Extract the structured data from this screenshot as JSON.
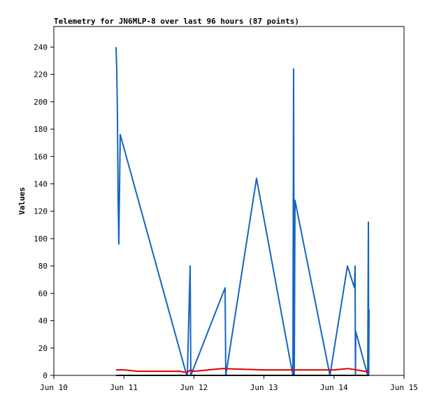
{
  "chart_data": {
    "type": "line",
    "title": "Telemetry for JN6MLP-8 over last 96 hours (87 points)",
    "ylabel": "Values",
    "xlim": [
      10,
      15
    ],
    "xticks": [
      {
        "value": 10,
        "label": "Jun 10"
      },
      {
        "value": 11,
        "label": "Jun 11"
      },
      {
        "value": 12,
        "label": "Jun 12"
      },
      {
        "value": 13,
        "label": "Jun 13"
      },
      {
        "value": 14,
        "label": "Jun 14"
      },
      {
        "value": 15,
        "label": "Jun 15"
      }
    ],
    "ylim": [
      0,
      255
    ],
    "yticks": [
      0,
      20,
      40,
      60,
      80,
      100,
      120,
      140,
      160,
      180,
      200,
      220,
      240
    ],
    "grid": false,
    "series": [
      {
        "color": "#1565c0",
        "x": [
          10.888,
          10.898,
          10.908,
          10.918,
          10.928,
          10.948,
          11.886,
          11.906,
          11.946,
          11.956,
          12.445,
          12.455,
          12.894,
          13.413,
          13.423,
          13.433,
          13.443,
          13.942,
          14.192,
          14.291,
          14.301,
          14.306,
          14.311,
          14.481,
          14.491,
          14.496,
          14.501
        ],
        "values": [
          240,
          224,
          192,
          128,
          96,
          176,
          2,
          0,
          80,
          0,
          64,
          0,
          144,
          0,
          224,
          0,
          128,
          0,
          80,
          64,
          80,
          0,
          32,
          0,
          112,
          0,
          48
        ]
      },
      {
        "color": "#e00000",
        "x": [
          10.888,
          11.0,
          11.2,
          11.8,
          11.9,
          11.95,
          12.0,
          12.4,
          13.0,
          14.0,
          14.2,
          14.5
        ],
        "values": [
          4,
          4,
          3,
          3,
          2,
          4,
          3,
          5,
          4,
          4,
          5,
          2.5
        ]
      },
      {
        "color": "#000000",
        "x": [
          10.888,
          14.5
        ],
        "values": [
          0,
          0
        ]
      }
    ]
  }
}
